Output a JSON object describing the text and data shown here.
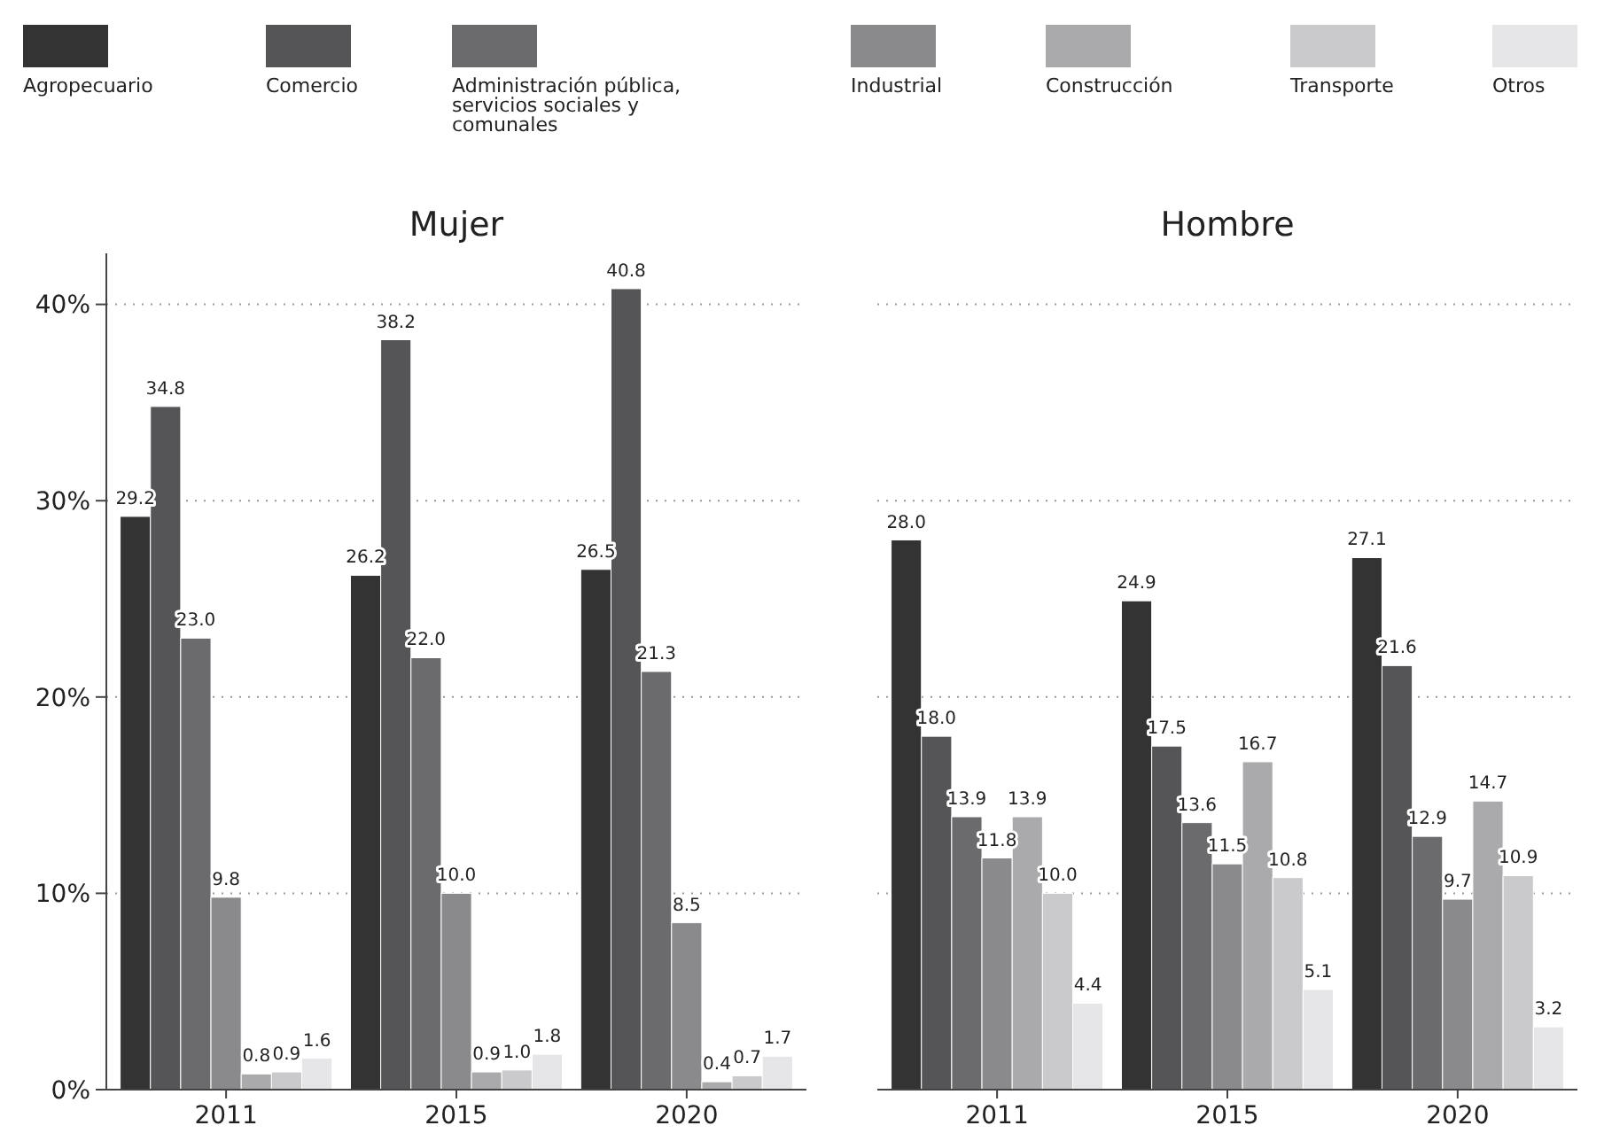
{
  "chart_data": [
    {
      "type": "bar",
      "title": "Mujer",
      "categories": [
        "2011",
        "2015",
        "2020"
      ],
      "ylim": [
        0,
        42.6
      ],
      "yticks": [
        {
          "value": 0,
          "label": "0%"
        },
        {
          "value": 10,
          "label": "10%"
        },
        {
          "value": 20,
          "label": "20%"
        },
        {
          "value": 30,
          "label": "30%"
        },
        {
          "value": 40,
          "label": "40%"
        }
      ],
      "grid": "y",
      "legend": "top",
      "series": [
        {
          "name": "Agropecuario",
          "color": "#333333",
          "values": [
            29.2,
            26.2,
            26.5
          ],
          "value_labels": [
            "29.2",
            "26.2",
            "26.5"
          ]
        },
        {
          "name": "Comercio",
          "color": "#555557",
          "values": [
            34.8,
            38.2,
            40.8
          ],
          "value_labels": [
            "34.8",
            "38.2",
            "40.8"
          ]
        },
        {
          "name": "Administración pública, servicios sociales y comunales",
          "color": "#6b6b6e",
          "values": [
            23.0,
            22.0,
            21.3
          ],
          "value_labels": [
            "23.0",
            "22.0",
            "21.3"
          ]
        },
        {
          "name": "Industrial",
          "color": "#8a8a8d",
          "values": [
            9.8,
            10.0,
            8.5
          ],
          "value_labels": [
            "9.8",
            "10.0",
            "8.5"
          ]
        },
        {
          "name": "Construcción",
          "color": "#aaaaad",
          "values": [
            0.8,
            0.9,
            0.4
          ],
          "value_labels": [
            "0.8",
            "0.9",
            "0.4"
          ]
        },
        {
          "name": "Transporte",
          "color": "#cacacc",
          "values": [
            0.9,
            1.0,
            0.7
          ],
          "value_labels": [
            "0.9",
            "1.0",
            "0.7"
          ]
        },
        {
          "name": "Otros",
          "color": "#e6e6e8",
          "values": [
            1.6,
            1.8,
            1.7
          ],
          "value_labels": [
            "1.6",
            "1.8",
            "1.7"
          ]
        }
      ]
    },
    {
      "type": "bar",
      "title": "Hombre",
      "categories": [
        "2011",
        "2015",
        "2020"
      ],
      "ylim": [
        0,
        40
      ],
      "yticks": [
        0,
        10,
        20,
        30,
        40
      ],
      "grid": "y",
      "tick_labels": "x",
      "series": [
        {
          "color": "#333333",
          "values": [
            28.0,
            24.9,
            27.1
          ],
          "value_labels": [
            "28.0",
            "24.9",
            "27.1"
          ]
        },
        {
          "color": "#555557",
          "values": [
            18.0,
            17.5,
            21.6
          ],
          "value_labels": [
            "18.0",
            "17.5",
            "21.6"
          ]
        },
        {
          "color": "#6b6b6e",
          "values": [
            13.9,
            13.6,
            12.9
          ],
          "value_labels": [
            "13.9",
            "13.6",
            "12.9"
          ]
        },
        {
          "color": "#8a8a8d",
          "values": [
            11.8,
            11.5,
            9.7
          ],
          "value_labels": [
            "11.8",
            "11.5",
            "9.7"
          ]
        },
        {
          "color": "#aaaaad",
          "values": [
            13.9,
            16.7,
            14.7
          ],
          "value_labels": [
            "13.9",
            "16.7",
            "14.7"
          ]
        },
        {
          "color": "#cacacc",
          "values": [
            10.0,
            10.8,
            10.9
          ],
          "value_labels": [
            "10.0",
            "10.8",
            "10.9"
          ]
        },
        {
          "color": "#e6e6e8",
          "values": [
            4.4,
            5.1,
            3.2
          ],
          "value_labels": [
            "4.4",
            "5.1",
            "3.2"
          ]
        }
      ]
    }
  ]
}
